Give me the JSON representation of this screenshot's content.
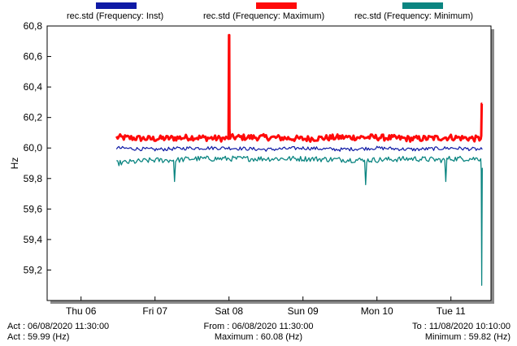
{
  "legend": [
    {
      "label": "rec.std (Frequency: Inst)",
      "color": "#0f1aa5"
    },
    {
      "label": "rec.std (Frequency: Maximum)",
      "color": "#ff0a0a"
    },
    {
      "label": "rec.std (Frequency: Minimum)",
      "color": "#0b8581"
    }
  ],
  "footer": {
    "act_date": "Act :  06/08/2020 11:30:00",
    "act_value": "Act : 59.99 (Hz)",
    "from_date": "From :  06/08/2020 11:30:00",
    "maximum": "Maximum : 60.08 (Hz)",
    "to_date": "To :  11/08/2020 10:10:00",
    "minimum": "Minimum : 59.82 (Hz)"
  },
  "chart_data": {
    "type": "line",
    "title": "",
    "xlabel": "",
    "ylabel": "Hz",
    "ylim": [
      59.0,
      60.8
    ],
    "xlim": [
      "2020-08-05 13:00",
      "2020-08-11 13:00"
    ],
    "grid": false,
    "legend_position": "top",
    "y_ticks": [
      "59,2",
      "59,4",
      "59,6",
      "59,8",
      "60,0",
      "60,2",
      "60,4",
      "60,6",
      "60,8"
    ],
    "x_ticks": [
      {
        "x": "2020-08-06 00:00",
        "label": "Thu 06"
      },
      {
        "x": "2020-08-07 00:00",
        "label": "Fri 07"
      },
      {
        "x": "2020-08-08 00:00",
        "label": "Sat 08"
      },
      {
        "x": "2020-08-09 00:00",
        "label": "Sun 09"
      },
      {
        "x": "2020-08-10 00:00",
        "label": "Mon 10"
      },
      {
        "x": "2020-08-11 00:00",
        "label": "Tue 11"
      }
    ],
    "series": [
      {
        "name": "rec.std (Frequency: Maximum)",
        "color": "#ff0a0a",
        "width": 3,
        "x": [
          "2020-08-06 11:30",
          "2020-08-06 23:00",
          "2020-08-07 12:00",
          "2020-08-07 23:50",
          "2020-08-08 00:00",
          "2020-08-08 00:05",
          "2020-08-08 00:10",
          "2020-08-08 00:20",
          "2020-08-08 12:00",
          "2020-08-09 00:00",
          "2020-08-09 12:00",
          "2020-08-10 00:00",
          "2020-08-10 12:00",
          "2020-08-11 00:00",
          "2020-08-11 09:40",
          "2020-08-11 09:50",
          "2020-08-11 10:00",
          "2020-08-11 10:10"
        ],
        "y": [
          60.07,
          60.06,
          60.07,
          60.06,
          60.74,
          60.74,
          60.12,
          60.07,
          60.07,
          60.06,
          60.07,
          60.07,
          60.06,
          60.07,
          60.06,
          60.08,
          60.29,
          60.29
        ],
        "noise": 0.02
      },
      {
        "name": "rec.std (Frequency: Inst)",
        "color": "#0f1aa5",
        "width": 1.2,
        "x": [
          "2020-08-06 11:30",
          "2020-08-07 00:00",
          "2020-08-07 12:00",
          "2020-08-08 00:00",
          "2020-08-08 12:00",
          "2020-08-09 00:00",
          "2020-08-09 12:00",
          "2020-08-10 00:00",
          "2020-08-10 12:00",
          "2020-08-11 00:00",
          "2020-08-11 10:10"
        ],
        "y": [
          60.0,
          59.99,
          60.0,
          60.0,
          59.99,
          60.0,
          59.99,
          60.0,
          59.99,
          60.0,
          59.99
        ],
        "noise": 0.012
      },
      {
        "name": "rec.std (Frequency: Minimum)",
        "color": "#0b8581",
        "width": 1.3,
        "x": [
          "2020-08-06 11:30",
          "2020-08-06 23:00",
          "2020-08-07 06:00",
          "2020-08-07 06:20",
          "2020-08-07 06:40",
          "2020-08-07 12:00",
          "2020-08-08 00:00",
          "2020-08-08 12:00",
          "2020-08-09 00:00",
          "2020-08-09 20:00",
          "2020-08-09 20:20",
          "2020-08-09 20:40",
          "2020-08-10 12:00",
          "2020-08-10 22:00",
          "2020-08-10 22:20",
          "2020-08-10 22:40",
          "2020-08-11 09:40",
          "2020-08-11 09:50",
          "2020-08-11 10:00",
          "2020-08-11 10:05",
          "2020-08-11 10:10"
        ],
        "y": [
          59.9,
          59.92,
          59.92,
          59.78,
          59.92,
          59.93,
          59.93,
          59.93,
          59.93,
          59.92,
          59.76,
          59.92,
          59.93,
          59.92,
          59.78,
          59.93,
          59.93,
          59.85,
          59.1,
          59.47,
          59.87
        ],
        "noise": 0.018
      }
    ]
  }
}
